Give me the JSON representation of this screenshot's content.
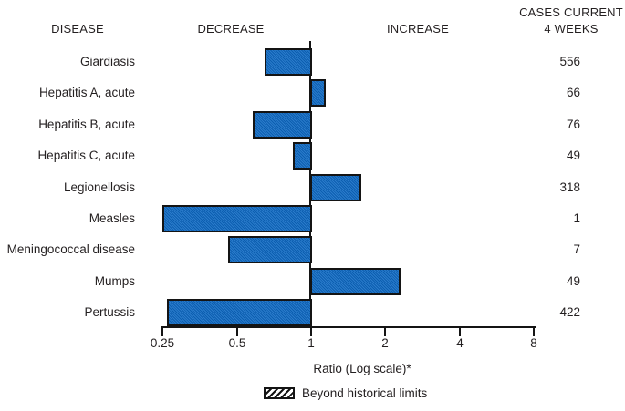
{
  "header": {
    "disease": "DISEASE",
    "decrease": "DECREASE",
    "increase": "INCREASE",
    "cases_line1": "CASES CURRENT",
    "cases_line2": "4 WEEKS"
  },
  "chart_data": {
    "type": "bar",
    "orientation": "horizontal",
    "scale": "log",
    "baseline": 1,
    "xlabel": "Ratio (Log scale)*",
    "xlim": [
      0.25,
      8
    ],
    "axis_ticks": [
      "0.25",
      "0.5",
      "1",
      "2",
      "4",
      "8"
    ],
    "legend": [
      {
        "label": "Beyond historical limits",
        "style": "hatched"
      }
    ],
    "rows": [
      {
        "disease": "Giardiasis",
        "ratio": 0.65,
        "cases": "556",
        "beyond_historical_limits": false
      },
      {
        "disease": "Hepatitis A, acute",
        "ratio": 1.15,
        "cases": "66",
        "beyond_historical_limits": false
      },
      {
        "disease": "Hepatitis B, acute",
        "ratio": 0.58,
        "cases": "76",
        "beyond_historical_limits": false
      },
      {
        "disease": "Hepatitis C, acute",
        "ratio": 0.84,
        "cases": "49",
        "beyond_historical_limits": false
      },
      {
        "disease": "Legionellosis",
        "ratio": 1.6,
        "cases": "318",
        "beyond_historical_limits": false
      },
      {
        "disease": "Measles",
        "ratio": 0.25,
        "cases": "1",
        "beyond_historical_limits": false
      },
      {
        "disease": "Meningococcal disease",
        "ratio": 0.46,
        "cases": "7",
        "beyond_historical_limits": false
      },
      {
        "disease": "Mumps",
        "ratio": 2.3,
        "cases": "49",
        "beyond_historical_limits": false
      },
      {
        "disease": "Pertussis",
        "ratio": 0.26,
        "cases": "422",
        "beyond_historical_limits": false
      }
    ]
  },
  "colors": {
    "bar_fill": "#0d69c4",
    "bar_border": "#141414",
    "text": "#231f20"
  }
}
